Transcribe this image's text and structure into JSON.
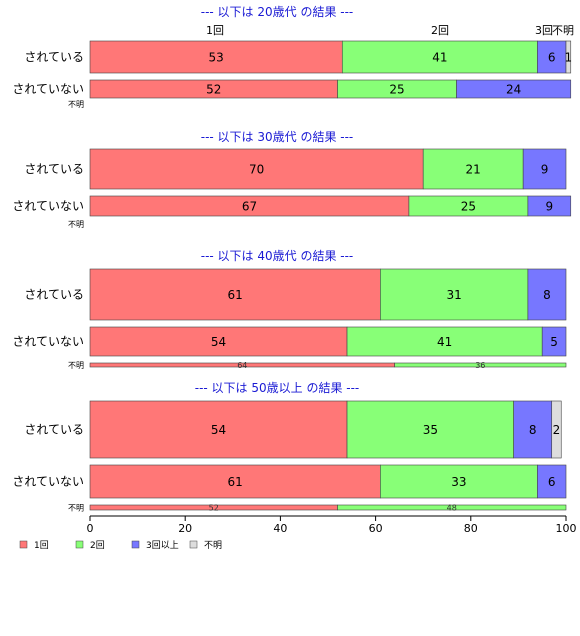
{
  "chart_data": {
    "type": "bar",
    "orientation": "horizontal",
    "stacked": "percent",
    "xlim": [
      0,
      100
    ],
    "x_ticks": [
      "0",
      "20",
      "40",
      "60",
      "80",
      "100"
    ],
    "legend": {
      "position": "bottom-left",
      "entries": [
        {
          "label": "1回",
          "color": "#ff7777"
        },
        {
          "label": "2回",
          "color": "#88ff77"
        },
        {
          "label": "3回以上",
          "color": "#7777ff"
        },
        {
          "label": "不明",
          "color": "#dddddd"
        }
      ]
    },
    "top_labels": [
      "1回",
      "2回",
      "3回",
      "不明"
    ],
    "panels": [
      {
        "title": "--- 以下は 20歳代 の結果 ---",
        "rows": [
          {
            "label": "されている",
            "values": [
              53,
              41,
              6,
              1
            ]
          },
          {
            "label": "されていない",
            "values": [
              52,
              25,
              24,
              0
            ]
          },
          {
            "label": "不明",
            "values": []
          }
        ]
      },
      {
        "title": "--- 以下は 30歳代 の結果 ---",
        "rows": [
          {
            "label": "されている",
            "values": [
              70,
              21,
              9,
              0
            ]
          },
          {
            "label": "されていない",
            "values": [
              67,
              25,
              9,
              0
            ]
          },
          {
            "label": "不明",
            "values": []
          }
        ]
      },
      {
        "title": "--- 以下は 40歳代 の結果 ---",
        "rows": [
          {
            "label": "されている",
            "values": [
              61,
              31,
              8,
              0
            ]
          },
          {
            "label": "されていない",
            "values": [
              54,
              41,
              5,
              0
            ]
          },
          {
            "label": "不明",
            "values": [
              64,
              36,
              0,
              0
            ]
          }
        ]
      },
      {
        "title": "--- 以下は 50歳以上 の結果 ---",
        "rows": [
          {
            "label": "されている",
            "values": [
              54,
              35,
              8,
              2
            ]
          },
          {
            "label": "されていない",
            "values": [
              61,
              33,
              6,
              0
            ]
          },
          {
            "label": "不明",
            "values": [
              52,
              48,
              0,
              0
            ]
          }
        ]
      }
    ]
  }
}
